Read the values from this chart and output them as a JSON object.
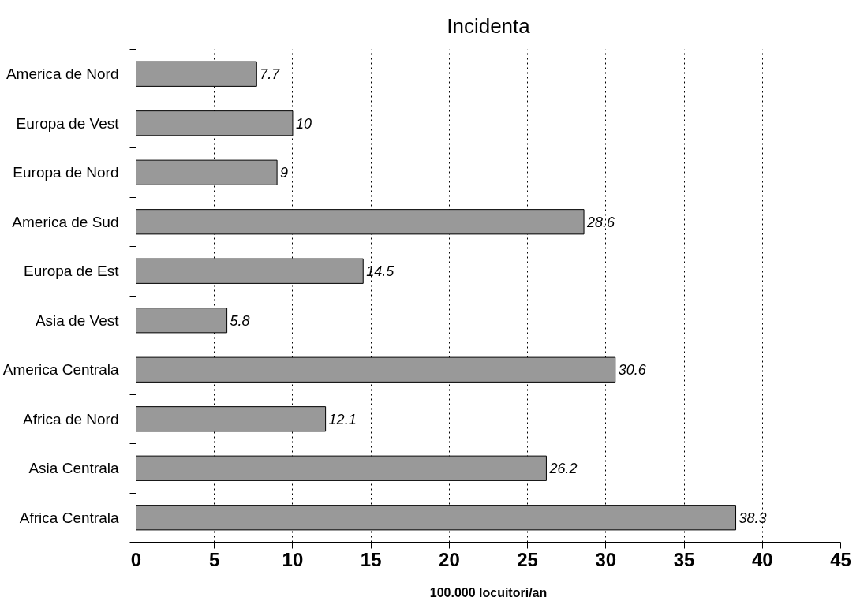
{
  "chart_data": {
    "type": "bar",
    "orientation": "horizontal",
    "title": "Incidenta",
    "xlabel": "100.000 locuitori/an",
    "categories": [
      "America de Nord",
      "Europa de Vest",
      "Europa de Nord",
      "America de Sud",
      "Europa de Est",
      "Asia de Vest",
      "America Centrala",
      "Africa de Nord",
      "Asia Centrala",
      "Africa Centrala"
    ],
    "values": [
      7.7,
      10,
      9,
      28.6,
      14.5,
      5.8,
      30.6,
      12.1,
      26.2,
      38.3
    ],
    "color": "#999999",
    "xlim": [
      0,
      45
    ],
    "xticks": [
      0,
      5,
      10,
      15,
      20,
      25,
      30,
      35,
      40,
      45
    ],
    "grid": "x",
    "data_labels": true
  }
}
